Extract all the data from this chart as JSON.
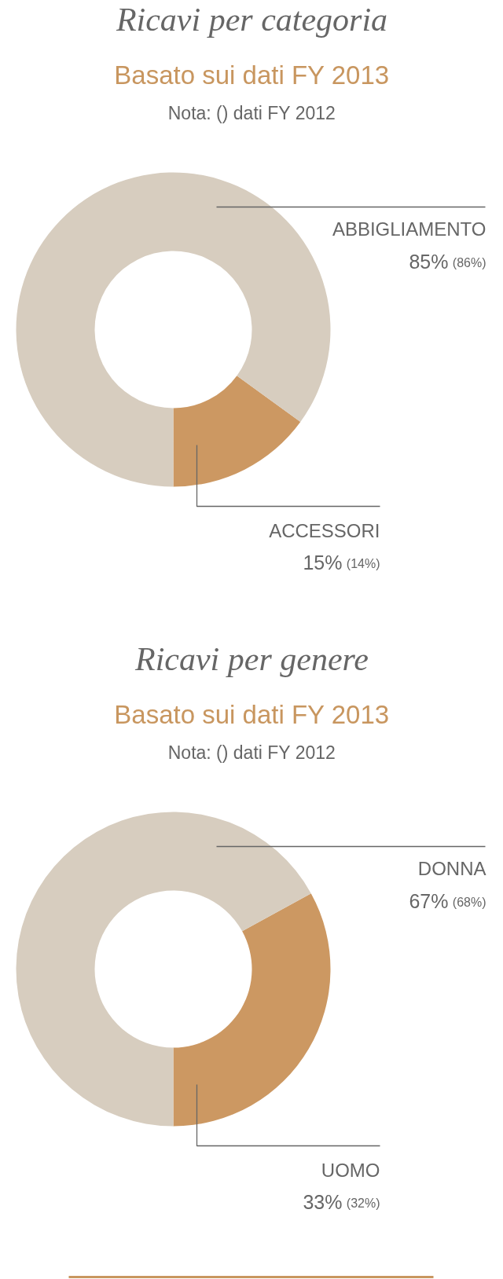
{
  "chart_data": [
    {
      "type": "donut",
      "title": "Ricavi per categoria",
      "subtitle": "Basato sui dati FY 2013",
      "annotations": [
        "Nota: () dati FY 2012"
      ],
      "categories": [
        "ABBIGLIAMENTO",
        "ACCESSORI"
      ],
      "values": [
        85,
        15
      ],
      "colors": [
        "#d7cdbf",
        "#cc9862"
      ],
      "value_labels": [
        "85% (86%)",
        "15% (14%)"
      ]
    },
    {
      "type": "donut",
      "title": "Ricavi per genere",
      "subtitle": "Basato sui dati FY 2013",
      "annotations": [
        "Nota: () dati FY 2012"
      ],
      "categories": [
        "DONNA",
        "UOMO"
      ],
      "values": [
        67,
        33
      ],
      "colors": [
        "#d7cdbf",
        "#cc9862"
      ],
      "value_labels": [
        "67% (68%)",
        "33% (32%)"
      ]
    }
  ]
}
